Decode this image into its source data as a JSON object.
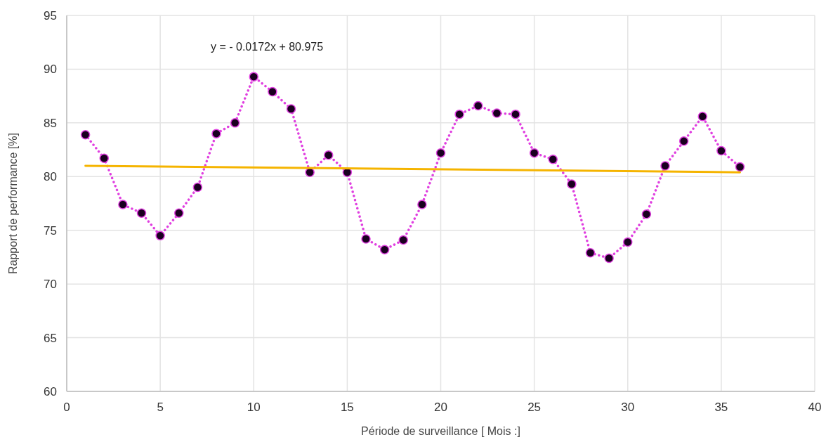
{
  "chart_data": {
    "type": "line",
    "xlabel": "Période de surveillance [  Mois :]",
    "ylabel": "Rapport de performance  [%]",
    "annotations": [
      "y = - 0.0172x + 80.975"
    ],
    "xlim": [
      0,
      40
    ],
    "xticks": [
      0,
      5,
      10,
      15,
      20,
      25,
      30,
      35,
      40
    ],
    "ylim": [
      60,
      95
    ],
    "yticks": [
      60,
      65,
      70,
      75,
      80,
      85,
      90,
      95
    ],
    "grid": true,
    "series": [
      {
        "color": "#e040e0",
        "marker": "circle",
        "line_style": "dotted",
        "x": [
          1,
          2,
          3,
          4,
          5,
          6,
          7,
          8,
          9,
          10,
          11,
          12,
          13,
          14,
          15,
          16,
          17,
          18,
          19,
          20,
          21,
          22,
          23,
          24,
          25,
          26,
          27,
          28,
          29,
          30,
          31,
          32,
          33,
          34,
          35,
          36
        ],
        "values": [
          83.9,
          81.7,
          77.4,
          76.6,
          74.5,
          76.6,
          79.0,
          84.0,
          85.0,
          89.3,
          87.9,
          86.3,
          80.4,
          82.0,
          80.4,
          74.2,
          73.2,
          74.1,
          77.4,
          82.2,
          85.8,
          86.6,
          85.9,
          85.8,
          82.2,
          81.6,
          79.3,
          72.9,
          72.4,
          73.9,
          76.5,
          81.0,
          83.3,
          85.6,
          82.4,
          80.9
        ]
      },
      {
        "color": "#f5b400",
        "marker": "none",
        "line_style": "solid",
        "x": [
          1,
          36
        ],
        "values": [
          81.0,
          80.4
        ]
      }
    ]
  }
}
